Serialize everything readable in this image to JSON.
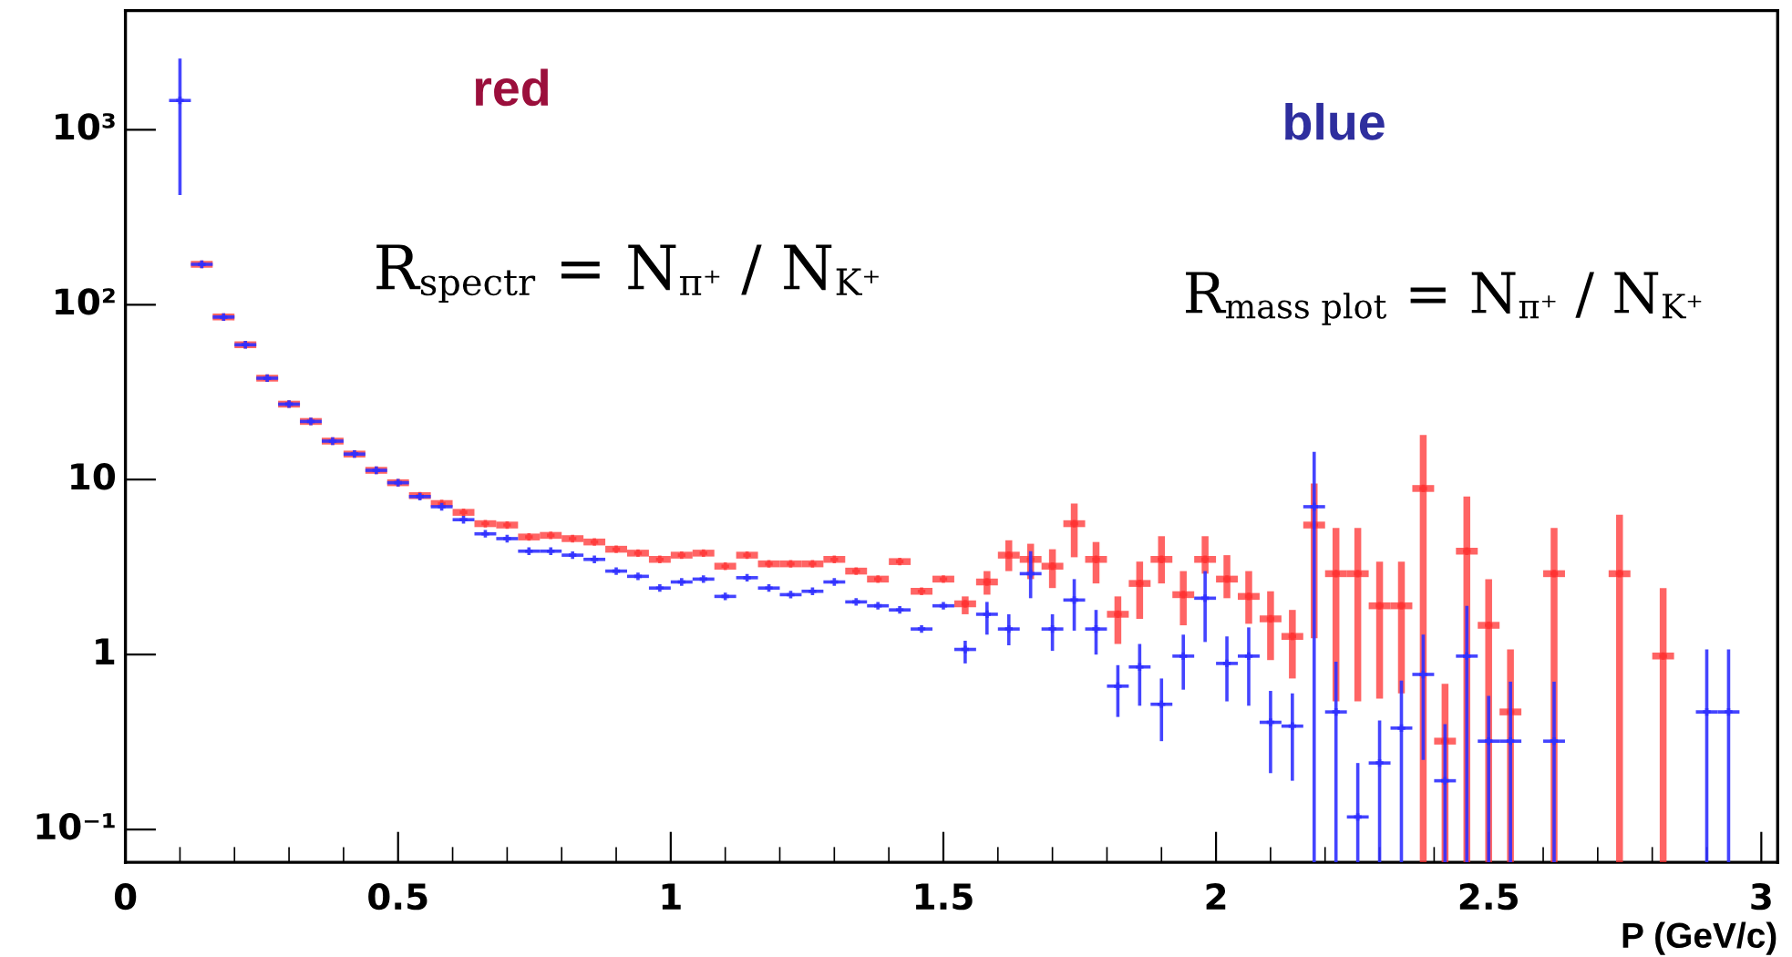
{
  "chart_data": {
    "type": "scatter",
    "xlabel": "P (GeV/c)",
    "x": [
      0.1,
      0.14,
      0.18,
      0.22,
      0.26,
      0.3,
      0.34,
      0.38,
      0.42,
      0.46,
      0.5,
      0.54,
      0.58,
      0.62,
      0.66,
      0.7,
      0.74,
      0.78,
      0.82,
      0.86,
      0.9,
      0.94,
      0.98,
      1.02,
      1.06,
      1.1,
      1.14,
      1.18,
      1.22,
      1.26,
      1.3,
      1.34,
      1.38,
      1.42,
      1.46,
      1.5,
      1.54,
      1.58,
      1.62,
      1.66,
      1.7,
      1.74,
      1.78,
      1.82,
      1.86,
      1.9,
      1.94,
      1.98,
      2.02,
      2.06,
      2.1,
      2.14,
      2.18,
      2.22,
      2.26,
      2.3,
      2.34,
      2.38,
      2.42,
      2.46,
      2.5,
      2.54,
      2.58,
      2.62,
      2.66,
      2.7,
      2.74,
      2.78,
      2.82,
      2.86,
      2.9,
      2.94
    ],
    "series": [
      {
        "color": "#ff3030",
        "values": [
          null,
          170,
          85,
          59,
          38,
          27,
          21.5,
          16.6,
          14,
          11.3,
          9.6,
          8.1,
          7.3,
          6.5,
          5.6,
          5.5,
          4.7,
          4.8,
          4.6,
          4.4,
          4.0,
          3.8,
          3.5,
          3.7,
          3.8,
          3.2,
          3.7,
          3.3,
          3.3,
          3.3,
          3.5,
          3.0,
          2.7,
          3.4,
          2.3,
          2.7,
          1.95,
          2.6,
          3.7,
          3.5,
          3.2,
          5.6,
          3.5,
          1.7,
          2.55,
          3.5,
          2.2,
          3.5,
          2.7,
          2.15,
          1.6,
          1.27,
          5.5,
          2.9,
          2.9,
          1.9,
          1.9,
          8.9,
          0.32,
          3.9,
          1.47,
          0.47,
          null,
          2.9,
          null,
          null,
          2.9,
          null,
          0.98,
          null,
          null,
          null
        ],
        "errors": [
          null,
          null,
          null,
          null,
          null,
          null,
          null,
          null,
          null,
          null,
          null,
          null,
          null,
          null,
          null,
          null,
          null,
          null,
          null,
          null,
          null,
          null,
          null,
          null,
          null,
          null,
          null,
          null,
          null,
          null,
          null,
          null,
          null,
          null,
          null,
          null,
          [
            1.7,
            2.15
          ],
          [
            2.2,
            3.0
          ],
          [
            3.0,
            4.5
          ],
          [
            2.7,
            4.3
          ],
          [
            2.4,
            4.0
          ],
          [
            3.6,
            7.3
          ],
          [
            2.55,
            4.4
          ],
          [
            1.15,
            2.15
          ],
          [
            1.6,
            3.4
          ],
          [
            2.55,
            4.75
          ],
          [
            1.47,
            3.0
          ],
          [
            2.9,
            4.75
          ],
          [
            2.1,
            3.7
          ],
          [
            1.5,
            3.0
          ],
          [
            0.93,
            2.3
          ],
          [
            0.73,
            1.8
          ],
          [
            1.24,
            9.5
          ],
          [
            0.54,
            5.3
          ],
          [
            0.54,
            5.3
          ],
          [
            0.56,
            3.4
          ],
          [
            0.6,
            3.4
          ],
          [
            0.065,
            18
          ],
          [
            0.065,
            0.68
          ],
          [
            0.065,
            8.0
          ],
          [
            0.065,
            2.7
          ],
          [
            0.065,
            1.07
          ],
          null,
          [
            0.065,
            5.3
          ],
          null,
          null,
          [
            0.065,
            6.3
          ],
          null,
          [
            0.065,
            2.4
          ],
          null,
          null,
          null
        ],
        "xerrors": [
          null,
          0.02,
          0.02,
          0.02,
          0.02,
          0.02,
          0.02,
          0.02,
          0.02,
          0.02,
          0.02,
          0.02,
          0.02,
          0.02,
          0.02,
          0.02,
          0.02,
          0.02,
          0.02,
          0.02,
          0.02,
          0.02,
          0.02,
          0.02,
          0.02,
          0.02,
          0.02,
          0.02,
          0.02,
          0.02,
          0.02,
          0.02,
          0.02,
          0.02,
          0.02,
          0.02,
          0.02,
          0.02,
          0.02,
          0.02,
          0.02,
          0.02,
          0.02,
          0.02,
          0.02,
          0.02,
          0.02,
          0.02,
          0.02,
          0.02,
          0.02,
          0.02,
          0.02,
          0.02,
          0.02,
          0.02,
          0.02,
          0.02,
          0.02,
          0.02,
          0.02,
          0.02,
          null,
          0.02,
          null,
          null,
          0.02,
          null,
          0.02,
          null,
          null,
          null
        ]
      },
      {
        "color": "#3030ff",
        "values": [
          1470,
          170,
          85,
          59,
          38,
          27,
          21.5,
          16.6,
          14,
          11.3,
          9.6,
          8.0,
          7.0,
          5.9,
          4.9,
          4.6,
          3.9,
          3.9,
          3.7,
          3.5,
          3.0,
          2.8,
          2.4,
          2.6,
          2.7,
          2.15,
          2.75,
          2.4,
          2.2,
          2.3,
          2.6,
          2.0,
          1.9,
          1.8,
          1.4,
          1.9,
          1.07,
          1.7,
          1.4,
          2.9,
          1.4,
          2.05,
          1.4,
          0.66,
          0.85,
          0.52,
          0.98,
          2.1,
          0.89,
          0.98,
          0.41,
          0.39,
          7.0,
          0.47,
          0.118,
          0.24,
          0.38,
          0.77,
          0.19,
          0.98,
          0.32,
          0.32,
          null,
          0.32,
          null,
          null,
          null,
          null,
          null,
          null,
          0.47,
          0.47
        ],
        "errors": [
          [
            423,
            2550
          ],
          null,
          null,
          null,
          null,
          null,
          null,
          null,
          null,
          null,
          null,
          null,
          null,
          null,
          null,
          null,
          null,
          null,
          null,
          null,
          null,
          null,
          null,
          null,
          null,
          null,
          null,
          null,
          null,
          null,
          null,
          null,
          null,
          null,
          null,
          null,
          [
            0.89,
            1.2
          ],
          [
            1.3,
            2.0
          ],
          [
            1.13,
            1.7
          ],
          [
            2.1,
            3.9
          ],
          [
            1.05,
            1.7
          ],
          [
            1.37,
            2.7
          ],
          [
            1.0,
            1.8
          ],
          [
            0.44,
            0.87
          ],
          [
            0.51,
            1.15
          ],
          [
            0.32,
            0.73
          ],
          [
            0.63,
            1.3
          ],
          [
            1.18,
            3.0
          ],
          [
            0.54,
            1.27
          ],
          [
            0.51,
            1.43
          ],
          [
            0.21,
            0.62
          ],
          [
            0.19,
            0.6
          ],
          [
            0.065,
            14.4
          ],
          [
            0.065,
            0.91
          ],
          [
            0.065,
            0.24
          ],
          [
            0.065,
            0.42
          ],
          [
            0.065,
            0.71
          ],
          [
            0.25,
            1.3
          ],
          [
            0.065,
            0.4
          ],
          [
            0.065,
            1.9
          ],
          [
            0.065,
            0.58
          ],
          [
            0.065,
            0.7
          ],
          null,
          [
            0.065,
            0.7
          ],
          null,
          null,
          null,
          null,
          null,
          null,
          [
            0.065,
            1.07
          ],
          [
            0.065,
            1.07
          ]
        ],
        "xerrors": [
          0.02,
          0.02,
          0.02,
          0.02,
          0.02,
          0.02,
          0.02,
          0.02,
          0.02,
          0.02,
          0.02,
          0.02,
          0.02,
          0.02,
          0.02,
          0.02,
          0.02,
          0.02,
          0.02,
          0.02,
          0.02,
          0.02,
          0.02,
          0.02,
          0.02,
          0.02,
          0.02,
          0.02,
          0.02,
          0.02,
          0.02,
          0.02,
          0.02,
          0.02,
          0.02,
          0.02,
          0.02,
          0.02,
          0.02,
          0.02,
          0.02,
          0.02,
          0.02,
          0.02,
          0.02,
          0.02,
          0.02,
          0.02,
          0.02,
          0.02,
          0.02,
          0.02,
          0.02,
          0.02,
          0.02,
          0.02,
          0.02,
          0.02,
          0.02,
          0.02,
          0.02,
          0.02,
          null,
          0.02,
          null,
          null,
          null,
          null,
          null,
          null,
          0.02,
          0.02
        ]
      }
    ],
    "log": "y",
    "xlim": [
      0,
      3.03
    ],
    "xticks": [
      0,
      0.5,
      1,
      1.5,
      2,
      2.5,
      3
    ],
    "ylim": [
      0.065,
      4800
    ],
    "yticks": [
      {
        "value": 0.1,
        "label": "10⁻¹"
      },
      1,
      10,
      {
        "value": 100,
        "label": "10²"
      },
      {
        "value": 1000,
        "label": "10³"
      }
    ],
    "marker": "cross",
    "grid": false,
    "annotations": [
      "red",
      "blue",
      "R$_{spectr}$ = N$_{π⁺}$ / N$_{K⁺}$",
      "R$_{mass plot}$ = N$_{π⁺}$ / N$_{K⁺}$"
    ]
  }
}
